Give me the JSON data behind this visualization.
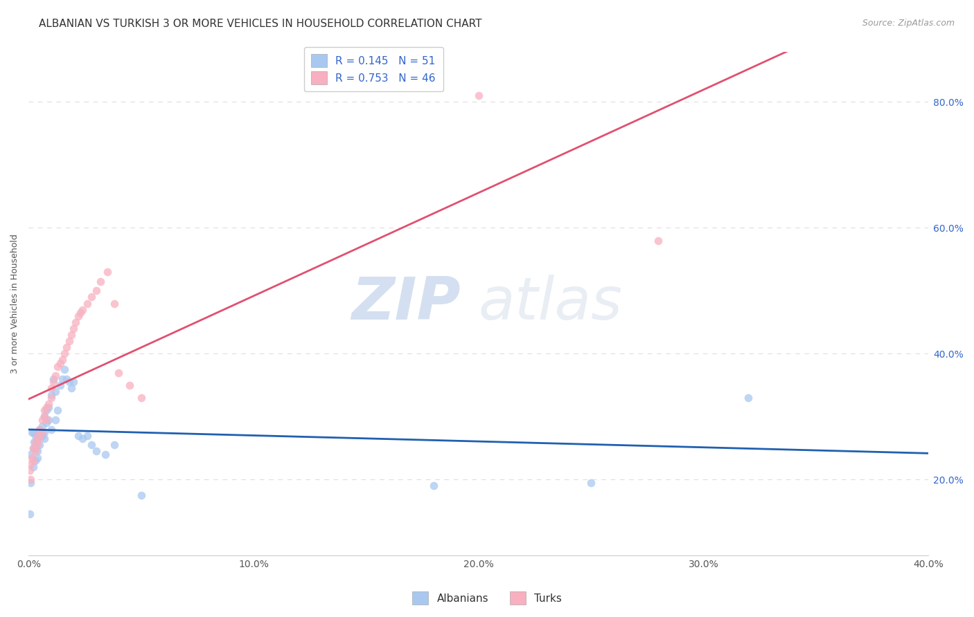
{
  "title": "ALBANIAN VS TURKISH 3 OR MORE VEHICLES IN HOUSEHOLD CORRELATION CHART",
  "source": "Source: ZipAtlas.com",
  "ylabel": "3 or more Vehicles in Household",
  "watermark_zip": "ZIP",
  "watermark_atlas": "atlas",
  "legend_albanian": "Albanians",
  "legend_turkish": "Turks",
  "R_albanian": 0.145,
  "N_albanian": 51,
  "R_turkish": 0.753,
  "N_turkish": 46,
  "color_albanian": "#a8c8f0",
  "color_turkish": "#f8b0c0",
  "color_line_albanian": "#2060b0",
  "color_line_turkish": "#e05070",
  "color_legend_text": "#3366cc",
  "xlim": [
    0.0,
    0.4
  ],
  "ylim": [
    0.08,
    0.88
  ],
  "xticks": [
    0.0,
    0.05,
    0.1,
    0.15,
    0.2,
    0.25,
    0.3,
    0.35,
    0.4
  ],
  "yticks": [
    0.2,
    0.4,
    0.6,
    0.8
  ],
  "ytick_labels": [
    "20.0%",
    "40.0%",
    "60.0%",
    "80.0%"
  ],
  "xtick_labels": [
    "0.0%",
    "",
    "10.0%",
    "",
    "20.0%",
    "",
    "30.0%",
    "",
    "40.0%"
  ],
  "albanian_x": [
    0.0005,
    0.001,
    0.001,
    0.0015,
    0.002,
    0.002,
    0.002,
    0.0025,
    0.003,
    0.003,
    0.003,
    0.0035,
    0.004,
    0.004,
    0.004,
    0.005,
    0.005,
    0.005,
    0.006,
    0.006,
    0.007,
    0.007,
    0.007,
    0.008,
    0.008,
    0.009,
    0.009,
    0.01,
    0.01,
    0.011,
    0.012,
    0.012,
    0.013,
    0.014,
    0.015,
    0.016,
    0.017,
    0.018,
    0.019,
    0.02,
    0.022,
    0.024,
    0.026,
    0.028,
    0.03,
    0.034,
    0.038,
    0.05,
    0.18,
    0.25,
    0.32
  ],
  "albanian_y": [
    0.145,
    0.24,
    0.195,
    0.275,
    0.25,
    0.22,
    0.275,
    0.26,
    0.23,
    0.25,
    0.27,
    0.26,
    0.245,
    0.265,
    0.235,
    0.27,
    0.255,
    0.28,
    0.27,
    0.285,
    0.275,
    0.3,
    0.265,
    0.31,
    0.29,
    0.315,
    0.295,
    0.335,
    0.28,
    0.36,
    0.295,
    0.34,
    0.31,
    0.35,
    0.36,
    0.375,
    0.36,
    0.355,
    0.345,
    0.355,
    0.27,
    0.265,
    0.27,
    0.255,
    0.245,
    0.24,
    0.255,
    0.175,
    0.19,
    0.195,
    0.33
  ],
  "turkish_x": [
    0.0005,
    0.001,
    0.001,
    0.0015,
    0.002,
    0.002,
    0.003,
    0.003,
    0.004,
    0.004,
    0.005,
    0.005,
    0.006,
    0.006,
    0.007,
    0.007,
    0.008,
    0.008,
    0.009,
    0.01,
    0.01,
    0.011,
    0.012,
    0.013,
    0.014,
    0.015,
    0.016,
    0.017,
    0.018,
    0.019,
    0.02,
    0.021,
    0.022,
    0.023,
    0.024,
    0.026,
    0.028,
    0.03,
    0.032,
    0.035,
    0.038,
    0.04,
    0.045,
    0.05,
    0.2,
    0.28
  ],
  "turkish_y": [
    0.215,
    0.2,
    0.225,
    0.235,
    0.23,
    0.25,
    0.245,
    0.26,
    0.255,
    0.27,
    0.265,
    0.28,
    0.295,
    0.275,
    0.3,
    0.31,
    0.315,
    0.295,
    0.32,
    0.33,
    0.345,
    0.355,
    0.365,
    0.38,
    0.385,
    0.39,
    0.4,
    0.41,
    0.42,
    0.43,
    0.44,
    0.45,
    0.46,
    0.465,
    0.47,
    0.48,
    0.49,
    0.5,
    0.515,
    0.53,
    0.48,
    0.37,
    0.35,
    0.33,
    0.81,
    0.58
  ],
  "background_color": "#ffffff",
  "grid_color": "#dddddd",
  "title_fontsize": 11,
  "axis_label_fontsize": 9,
  "tick_fontsize": 10,
  "legend_fontsize": 11,
  "source_fontsize": 9,
  "marker_size": 70,
  "marker_alpha": 0.75
}
